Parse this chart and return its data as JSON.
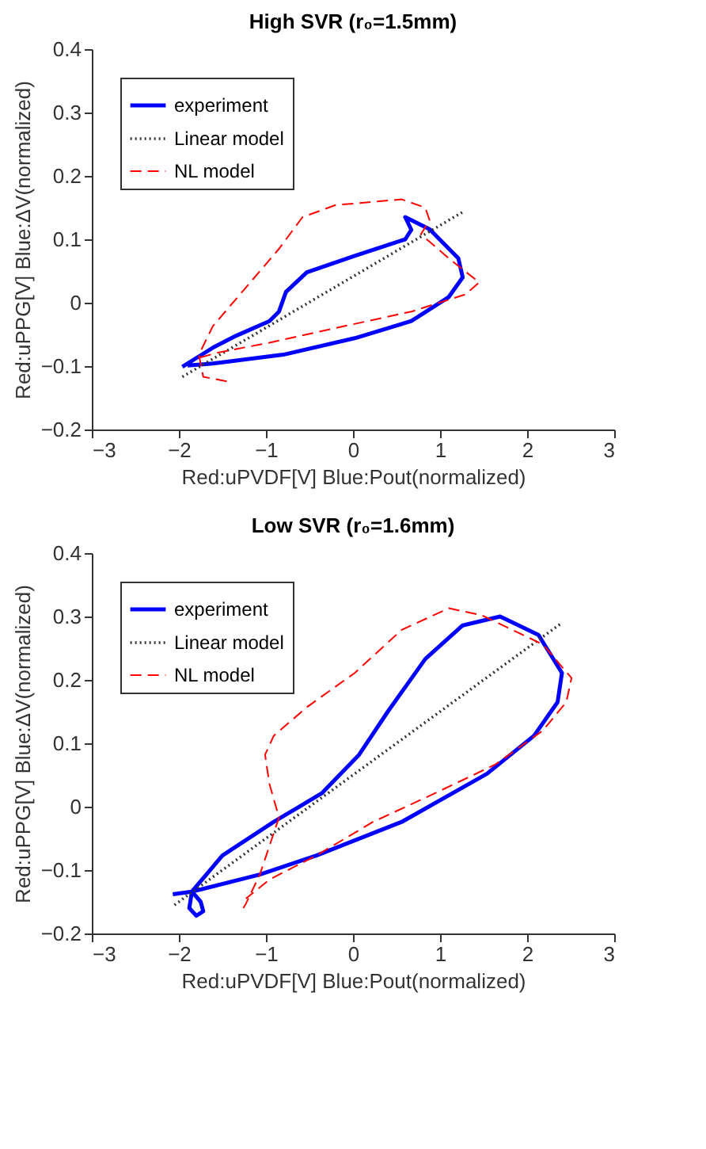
{
  "chart_data": [
    {
      "type": "line",
      "title": "High SVR (r₀=1.5mm)",
      "xlabel": "Red:uPVDF[V]  Blue:Pout(normalized)",
      "ylabel": "Red:uPPG[V]  Blue:ΔV(normalized)",
      "xlim": [
        -3,
        3
      ],
      "ylim": [
        -0.2,
        0.4
      ],
      "xticks": [
        -3,
        -2,
        -1,
        0,
        1,
        2,
        3
      ],
      "yticks": [
        -0.2,
        -0.1,
        0,
        0.1,
        0.2,
        0.3,
        0.4
      ],
      "grid": false,
      "legend": "top left",
      "series": [
        {
          "name": "experiment",
          "color": "#0000ff",
          "line_style": "solid",
          "x": [
            -1.96,
            -1.61,
            -1.34,
            -0.96,
            -0.85,
            -0.77,
            -0.53,
            0.02,
            0.6,
            0.67,
            0.6,
            0.88,
            1.21,
            1.26,
            1.1,
            0.67,
            0.02,
            -0.8,
            -1.61,
            -1.9
          ],
          "values": [
            -0.101,
            -0.071,
            -0.052,
            -0.029,
            -0.014,
            0.017,
            0.048,
            0.074,
            0.1,
            0.115,
            0.135,
            0.116,
            0.07,
            0.04,
            0.009,
            -0.029,
            -0.056,
            -0.082,
            -0.096,
            -0.099
          ]
        },
        {
          "name": "Linear model",
          "color": "#333333",
          "line_style": "dotted",
          "x": [
            -1.96,
            1.26
          ],
          "values": [
            -0.117,
            0.143
          ]
        },
        {
          "name": "NL model",
          "color": "#ff0000",
          "line_style": "dashed",
          "x": [
            -1.45,
            -1.72,
            -1.77,
            -1.61,
            -1.23,
            -0.85,
            -0.58,
            -0.2,
            0.56,
            0.83,
            0.88,
            0.78,
            1.1,
            1.45,
            1.29,
            0.67,
            -0.2,
            -0.96,
            -1.56,
            -1.77
          ],
          "values": [
            -0.124,
            -0.117,
            -0.082,
            -0.037,
            0.024,
            0.085,
            0.135,
            0.154,
            0.163,
            0.15,
            0.13,
            0.108,
            0.07,
            0.032,
            0.013,
            -0.014,
            -0.04,
            -0.063,
            -0.079,
            -0.087
          ]
        }
      ]
    },
    {
      "type": "line",
      "title": "Low SVR (r₀=1.6mm)",
      "xlabel": "Red:uPVDF[V]  Blue:Pout(normalized)",
      "ylabel": "Red:uPPG[V]  Blue:ΔV(normalized)",
      "xlim": [
        -3,
        3
      ],
      "ylim": [
        -0.2,
        0.4
      ],
      "xticks": [
        -3,
        -2,
        -1,
        0,
        1,
        2,
        3
      ],
      "yticks": [
        -0.2,
        -0.1,
        0,
        0.1,
        0.2,
        0.3,
        0.4
      ],
      "grid": false,
      "legend": "top left",
      "series": [
        {
          "name": "experiment",
          "color": "#0000ff",
          "line_style": "solid",
          "x": [
            -2.07,
            -1.85,
            -1.5,
            -0.91,
            -0.36,
            0.07,
            0.4,
            0.83,
            1.26,
            1.69,
            2.13,
            2.4,
            2.35,
            2.08,
            1.54,
            0.56,
            -0.42,
            -1.07,
            -1.85,
            -1.75,
            -1.72,
            -1.8,
            -1.88,
            -1.85
          ],
          "values": [
            -0.138,
            -0.134,
            -0.077,
            -0.024,
            0.021,
            0.082,
            0.15,
            0.233,
            0.286,
            0.3,
            0.271,
            0.211,
            0.165,
            0.112,
            0.052,
            -0.024,
            -0.077,
            -0.107,
            -0.134,
            -0.15,
            -0.165,
            -0.172,
            -0.16,
            -0.134
          ]
        },
        {
          "name": "Linear model",
          "color": "#333333",
          "line_style": "dotted",
          "x": [
            -2.05,
            2.4
          ],
          "values": [
            -0.155,
            0.29
          ]
        },
        {
          "name": "NL model",
          "color": "#ff0000",
          "line_style": "dashed",
          "x": [
            -1.26,
            -1.23,
            -1.07,
            -0.85,
            -0.96,
            -1.01,
            -0.91,
            -0.52,
            0.02,
            0.56,
            1.1,
            1.48,
            2.18,
            2.51,
            2.45,
            2.18,
            1.64,
            0.94,
            0.23,
            -0.42,
            -0.96,
            -1.23
          ],
          "values": [
            -0.16,
            -0.153,
            -0.107,
            -0.017,
            0.036,
            0.082,
            0.112,
            0.158,
            0.211,
            0.279,
            0.313,
            0.302,
            0.256,
            0.203,
            0.165,
            0.12,
            0.067,
            0.021,
            -0.024,
            -0.077,
            -0.115,
            -0.145
          ]
        }
      ]
    }
  ]
}
